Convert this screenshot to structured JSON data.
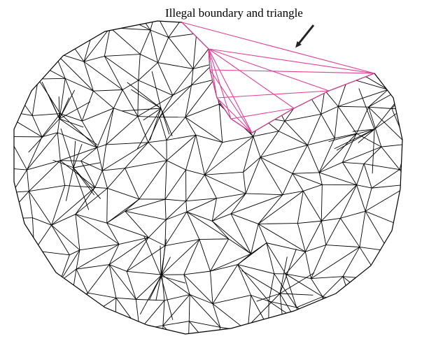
{
  "annotation": {
    "text": "Illegal boundary and triangle"
  }
}
